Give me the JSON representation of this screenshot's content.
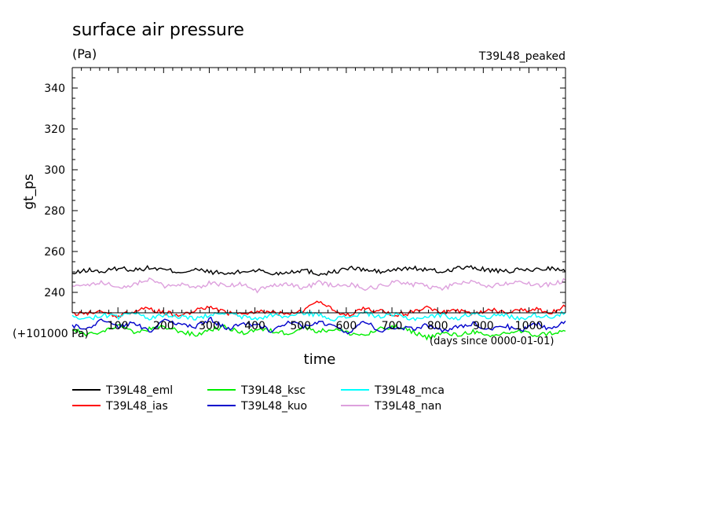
{
  "chart_data": {
    "type": "line",
    "title": "surface air pressure",
    "units": "(Pa)",
    "subtitle_right": "T39L48_peaked",
    "ylabel": "gt_ps",
    "xlabel": "time",
    "x_offset_label": "(+101000 Pa)",
    "x_units_label": "(days since 0000-01-01)",
    "x_ticks": [
      "100",
      "200",
      "300",
      "400",
      "500",
      "600",
      "700",
      "800",
      "900",
      "1000"
    ],
    "y_ticks": [
      "240",
      "260",
      "280",
      "300",
      "320",
      "340"
    ],
    "xlim": [
      0,
      1080
    ],
    "ylim": [
      230,
      350
    ],
    "grid": false,
    "legend_position": "bottom-left",
    "series": [
      {
        "name": "T39L48_eml",
        "color": "#000000",
        "values": [
          249,
          251,
          250,
          252,
          251,
          252,
          251,
          250,
          251,
          250,
          249,
          250,
          251,
          249,
          250,
          251,
          249,
          250,
          252,
          251,
          250,
          251,
          252,
          251,
          250,
          252,
          252,
          251,
          250,
          251,
          251,
          252,
          250
        ]
      },
      {
        "name": "T39L48_ias",
        "color": "#ff0000",
        "values": [
          229,
          230,
          231,
          228,
          231,
          232,
          230,
          229,
          231,
          233,
          230,
          229,
          231,
          230,
          229,
          231,
          236,
          231,
          229,
          232,
          231,
          229,
          230,
          233,
          230,
          231,
          229,
          232,
          230,
          231,
          232,
          230,
          233
        ]
      },
      {
        "name": "T39L48_ksc",
        "color": "#00ee00",
        "values": [
          222,
          219,
          221,
          224,
          220,
          222,
          223,
          221,
          219,
          222,
          223,
          220,
          222,
          221,
          220,
          223,
          221,
          222,
          220,
          219,
          222,
          223,
          221,
          218,
          220,
          219,
          221,
          218,
          220,
          221,
          219,
          220,
          221
        ]
      },
      {
        "name": "T39L48_kuo",
        "color": "#0000cc",
        "values": [
          224,
          222,
          227,
          223,
          225,
          221,
          226,
          224,
          223,
          227,
          222,
          225,
          224,
          221,
          226,
          223,
          225,
          224,
          220,
          226,
          221,
          223,
          222,
          224,
          221,
          223,
          225,
          222,
          224,
          221,
          225,
          222,
          226
        ]
      },
      {
        "name": "T39L48_mca",
        "color": "#00ffff",
        "values": [
          228,
          227,
          229,
          228,
          230,
          227,
          229,
          228,
          227,
          229,
          230,
          228,
          227,
          229,
          228,
          230,
          229,
          227,
          228,
          230,
          228,
          229,
          227,
          228,
          229,
          227,
          230,
          228,
          229,
          227,
          229,
          228,
          230
        ]
      },
      {
        "name": "T39L48_nan",
        "color": "#dda0dd",
        "values": [
          244,
          243,
          245,
          242,
          244,
          246,
          243,
          244,
          242,
          245,
          243,
          244,
          241,
          243,
          244,
          242,
          245,
          243,
          244,
          242,
          243,
          245,
          244,
          243,
          242,
          244,
          245,
          243,
          244,
          246,
          243,
          244,
          246
        ]
      }
    ]
  }
}
